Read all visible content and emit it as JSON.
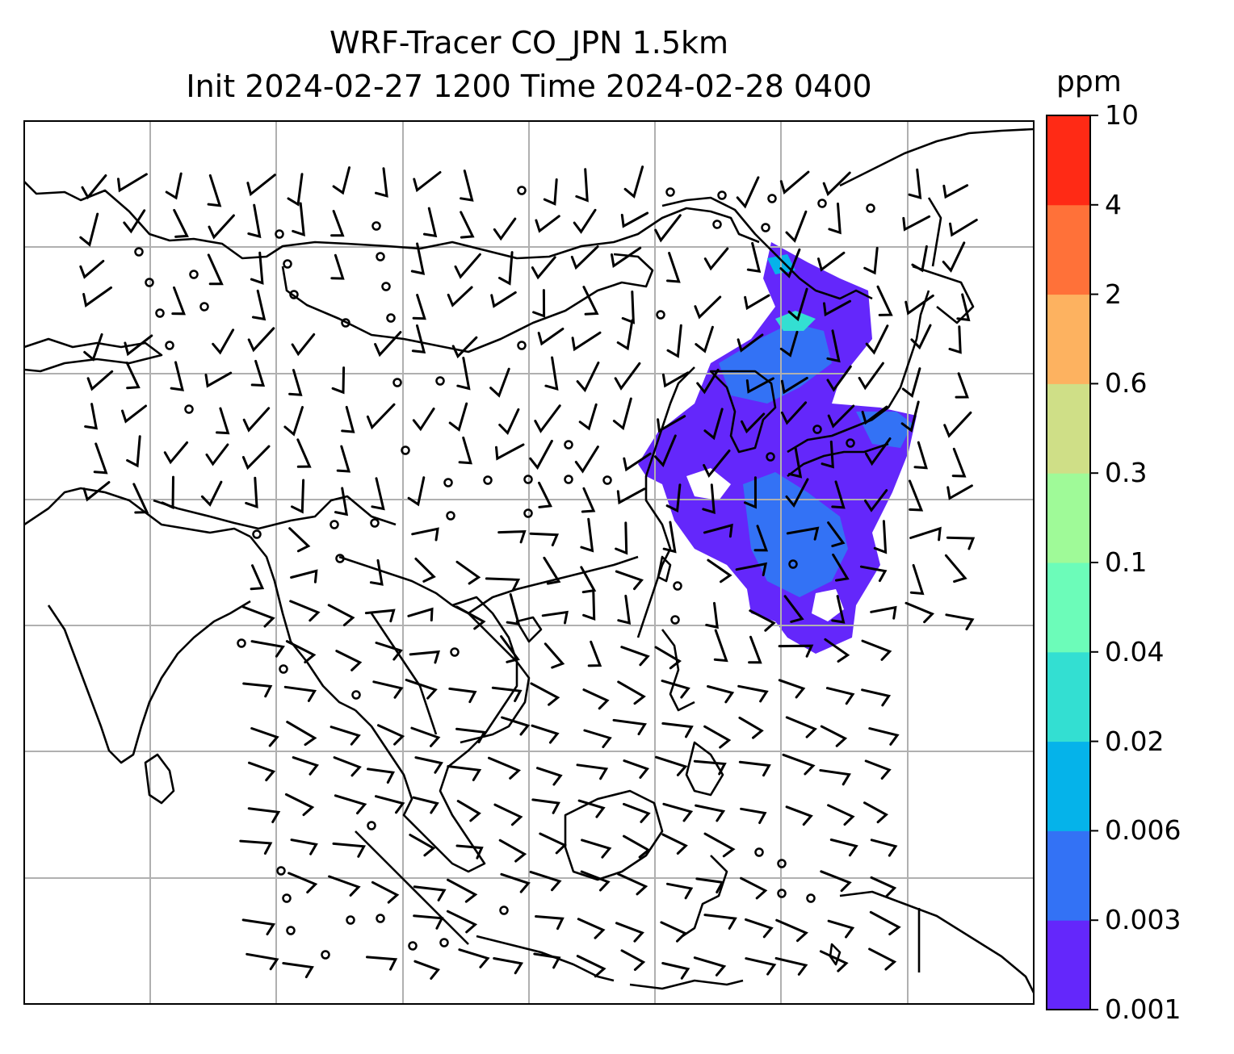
{
  "title_line1": "WRF-Tracer CO_JPN 1.5km",
  "title_line2": "Init 2024-02-27 1200 Time 2024-02-28 0400",
  "colorbar": {
    "unit": "ppm",
    "levels": [
      "0.001",
      "0.003",
      "0.006",
      "0.02",
      "0.04",
      "0.1",
      "0.3",
      "0.6",
      "2",
      "4",
      "10"
    ],
    "colors": [
      "#6427fb",
      "#3372f5",
      "#05b3ea",
      "#33dfd2",
      "#6cfcb9",
      "#9ffa98",
      "#cfdf87",
      "#fdb260",
      "#ff7139",
      "#ff2a15"
    ]
  },
  "map": {
    "gridline_color": "#b0b0b0",
    "coastline_color": "#000000",
    "plume_colors": [
      "#6427fb",
      "#3372f5",
      "#05b3ea",
      "#33dfd2"
    ],
    "wind_barb_color": "#000000"
  }
}
